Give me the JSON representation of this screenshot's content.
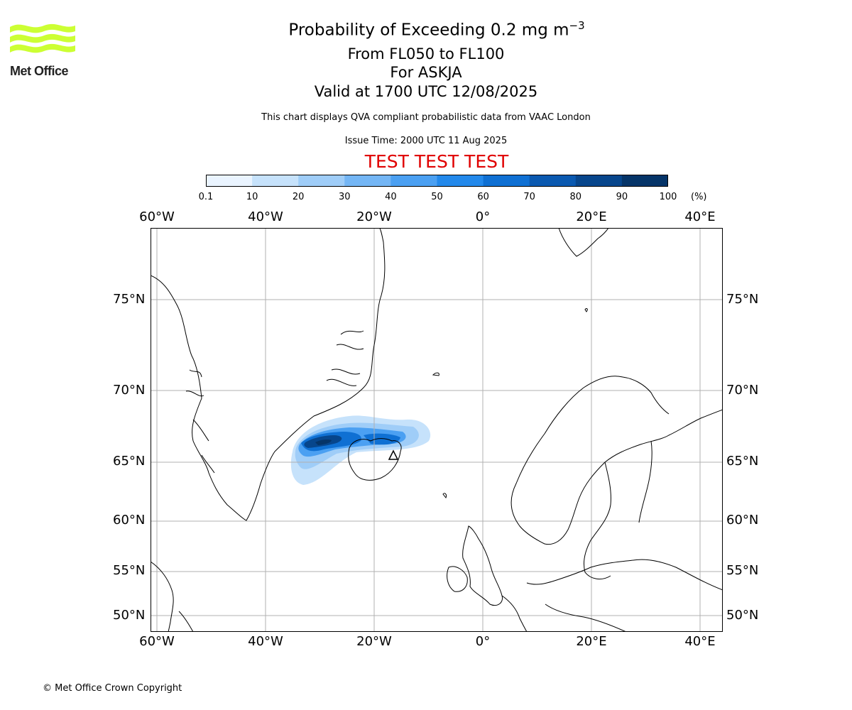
{
  "header": {
    "title_prefix": "Probability of Exceeding 0.2 mg m",
    "title_superscript": "−3",
    "line2": "From FL050 to FL100",
    "line3": "For ASKJA",
    "line4": "Valid at 1700 UTC 12/08/2025",
    "info": "This chart displays QVA compliant probabilistic data from VAAC London",
    "issue": "Issue Time: 2000 UTC 11 Aug 2025",
    "test_banner": "TEST TEST TEST"
  },
  "logo": {
    "text": "Met Office",
    "color": "#ccff33"
  },
  "colorbar": {
    "ticks": [
      "0.1",
      "10",
      "20",
      "30",
      "40",
      "50",
      "60",
      "70",
      "80",
      "90",
      "100"
    ],
    "unit": "(%)",
    "colors": [
      "#eaf4ff",
      "#c6e2fb",
      "#9fcdf8",
      "#74b6f5",
      "#4ba0f2",
      "#2389eb",
      "#0f70d3",
      "#0a59b0",
      "#07468c",
      "#053468"
    ]
  },
  "map": {
    "lon_labels": [
      "60°W",
      "40°W",
      "20°W",
      "0°",
      "20°E",
      "40°E"
    ],
    "lat_labels": [
      "75°N",
      "70°N",
      "65°N",
      "60°N",
      "55°N",
      "50°N"
    ],
    "volcano": "ASKJA"
  },
  "footer": {
    "copyright": "© Met Office Crown Copyright"
  }
}
